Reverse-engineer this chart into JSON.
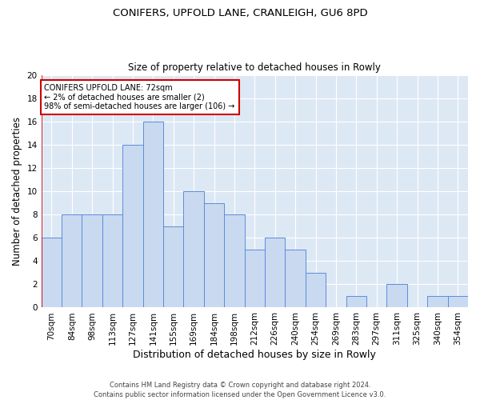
{
  "title1": "CONIFERS, UPFOLD LANE, CRANLEIGH, GU6 8PD",
  "title2": "Size of property relative to detached houses in Rowly",
  "xlabel": "Distribution of detached houses by size in Rowly",
  "ylabel": "Number of detached properties",
  "categories": [
    "70sqm",
    "84sqm",
    "98sqm",
    "113sqm",
    "127sqm",
    "141sqm",
    "155sqm",
    "169sqm",
    "184sqm",
    "198sqm",
    "212sqm",
    "226sqm",
    "240sqm",
    "254sqm",
    "269sqm",
    "283sqm",
    "297sqm",
    "311sqm",
    "325sqm",
    "340sqm",
    "354sqm"
  ],
  "values": [
    6,
    8,
    8,
    8,
    14,
    16,
    7,
    10,
    9,
    8,
    5,
    6,
    5,
    3,
    0,
    1,
    0,
    2,
    0,
    1,
    1
  ],
  "bar_fill": "#c9d9f0",
  "bar_edge": "#5b8dd9",
  "annotation_line_color": "#cc0000",
  "annotation_box_edge": "#cc0000",
  "annotation_text": "CONIFERS UPFOLD LANE: 72sqm\n← 2% of detached houses are smaller (2)\n98% of semi-detached houses are larger (106) →",
  "annotation_bar_index": 0,
  "ylim": [
    0,
    20
  ],
  "yticks": [
    0,
    2,
    4,
    6,
    8,
    10,
    12,
    14,
    16,
    18,
    20
  ],
  "footer": "Contains HM Land Registry data © Crown copyright and database right 2024.\nContains public sector information licensed under the Open Government Licence v3.0.",
  "bg_color": "#dde8f5",
  "grid_color": "#ffffff",
  "title1_fontsize": 9.5,
  "title2_fontsize": 8.5,
  "xlabel_fontsize": 9,
  "ylabel_fontsize": 8.5,
  "tick_fontsize": 7.5,
  "annot_fontsize": 7,
  "footer_fontsize": 6
}
